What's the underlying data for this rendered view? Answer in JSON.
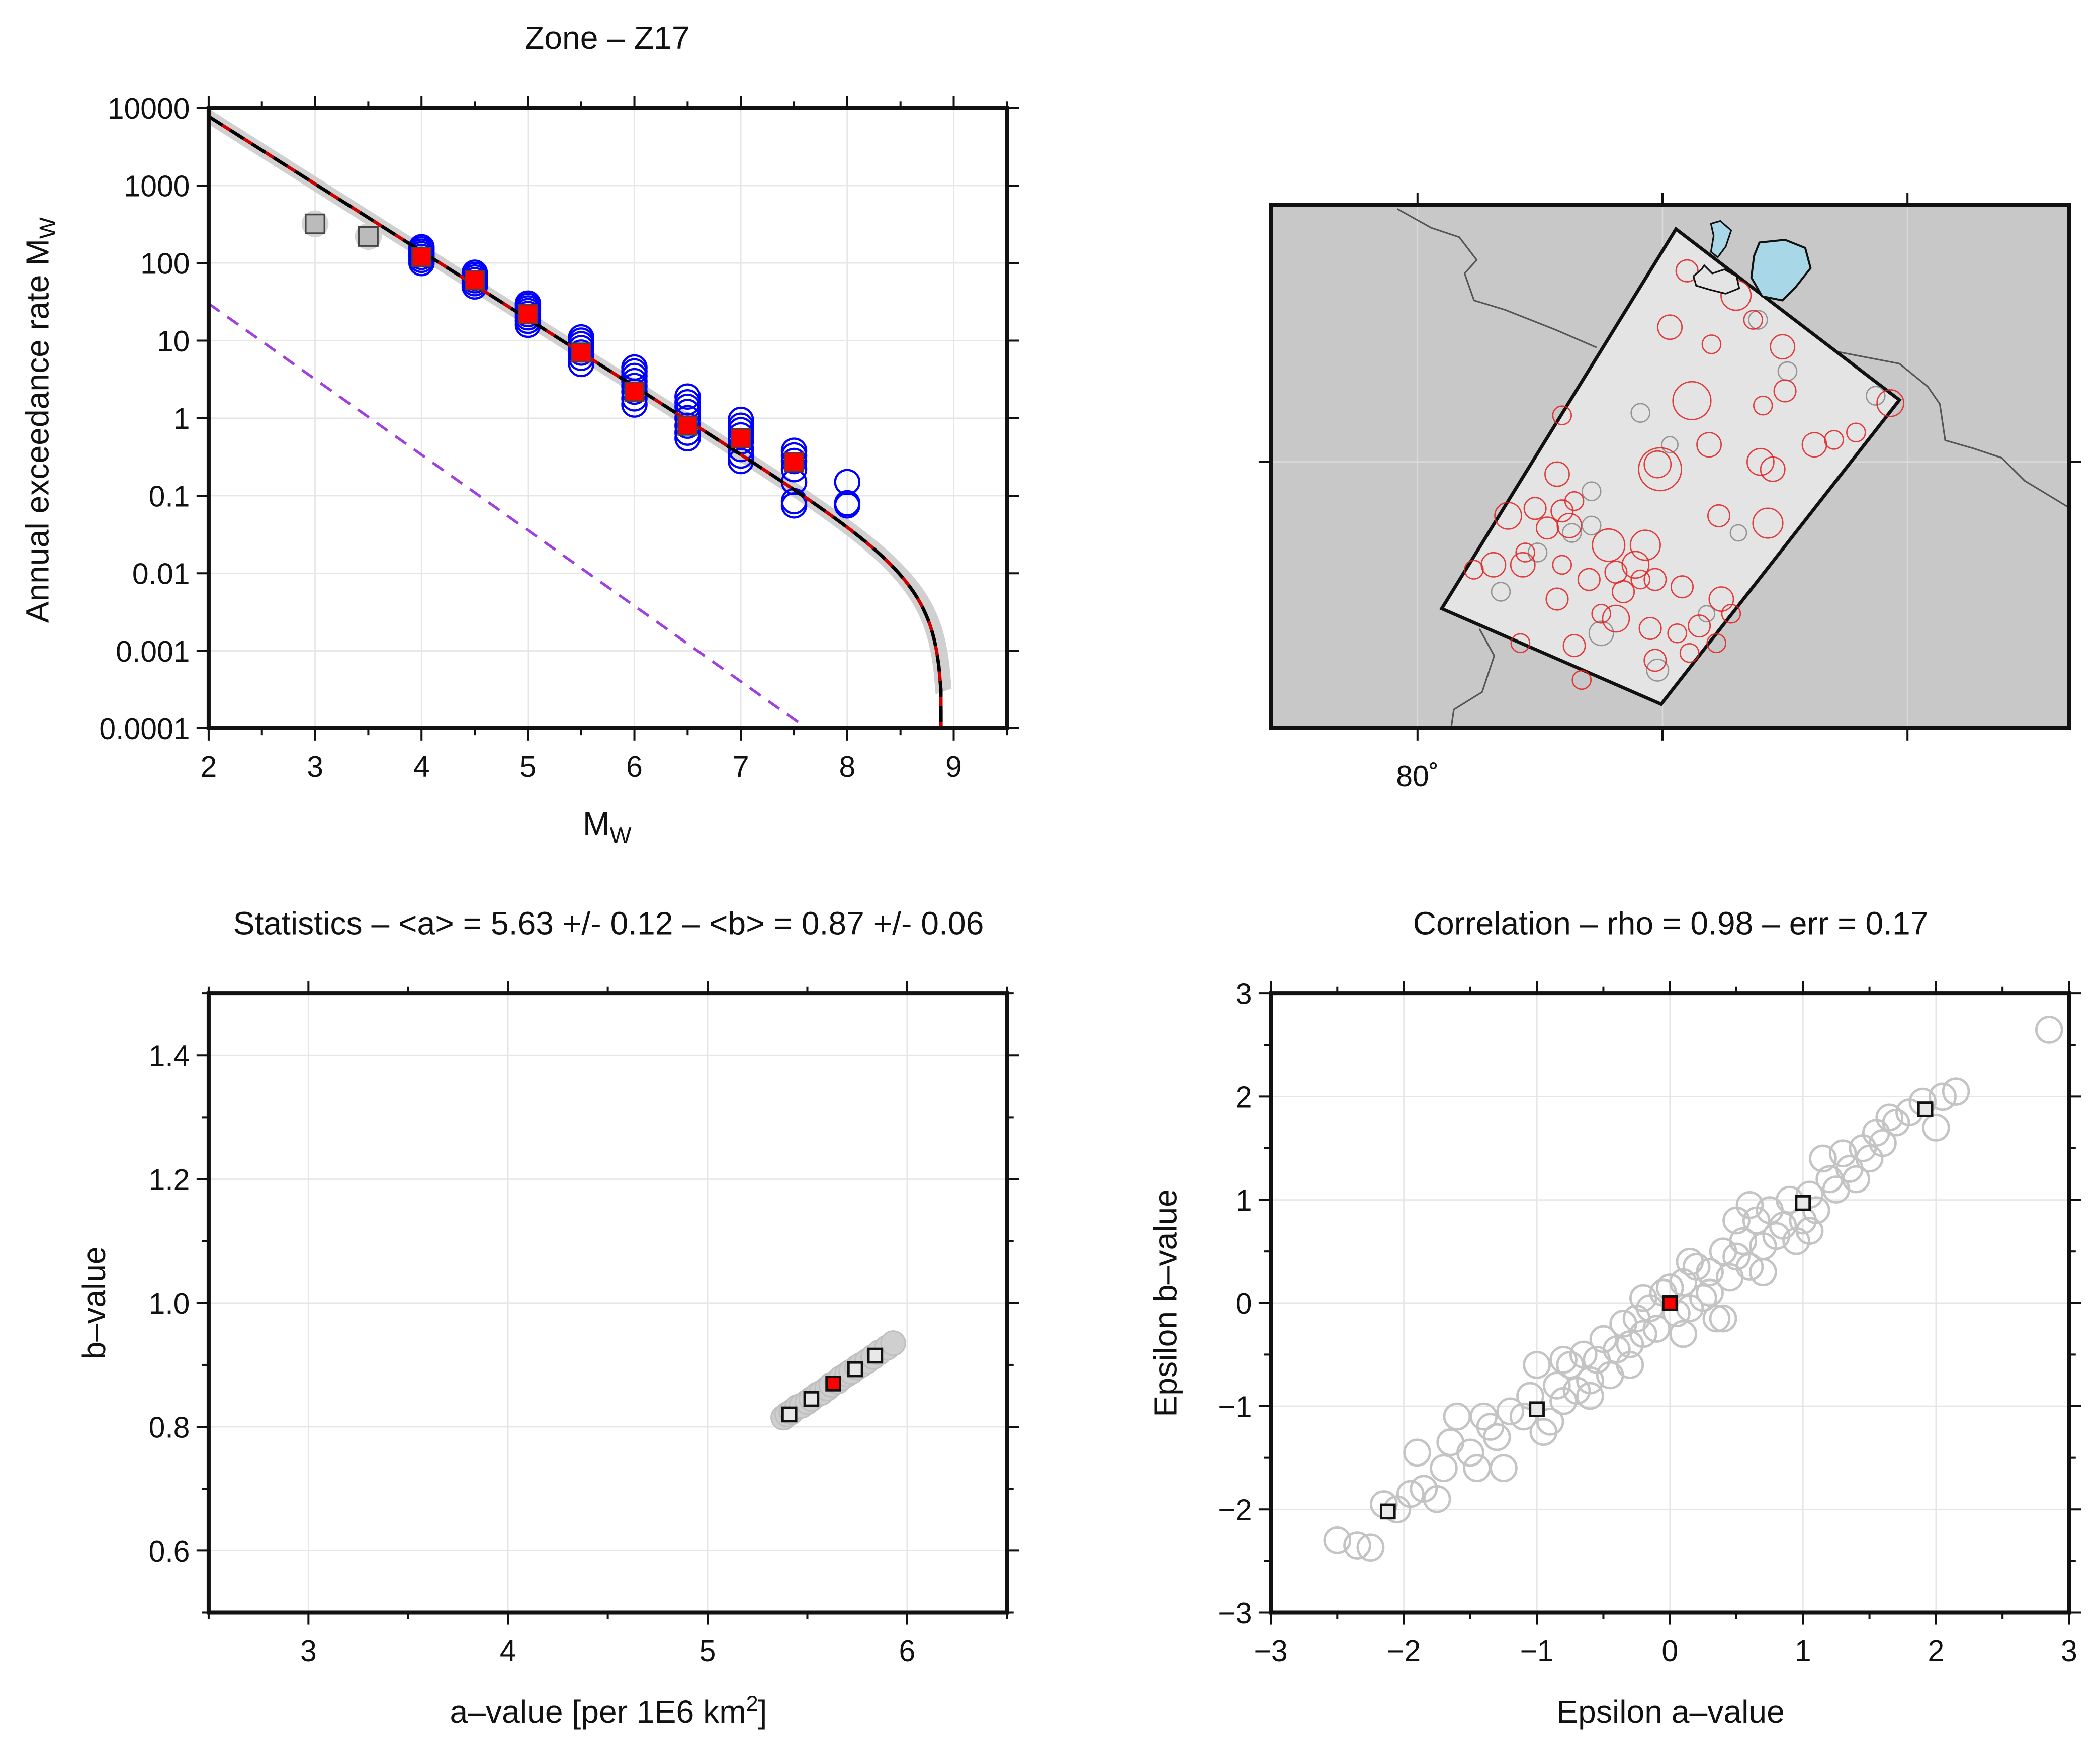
{
  "chart_data": [
    {
      "type": "scatter",
      "title": "Zone – Z17",
      "xlabel": "M",
      "xlabel_sub": "W",
      "ylabel": "Annual exceedance rate M",
      "ylabel_sub": "W",
      "xlim": [
        2,
        9.5
      ],
      "ylim": [
        0.0001,
        10000
      ],
      "yscale": "log",
      "grid": true,
      "xticks": [
        2,
        3,
        4,
        5,
        6,
        7,
        8,
        9
      ],
      "yticks": [
        10000,
        1000,
        100,
        10,
        1,
        0.1,
        0.01,
        0.001,
        0.0001
      ],
      "ytick_labels": [
        "10000",
        "1000",
        "100",
        "10",
        "1",
        "0.1",
        "0.01",
        "0.001",
        "0.0001"
      ],
      "observed_rates": {
        "color": "#ff0000",
        "x": [
          4,
          4.5,
          5,
          5.5,
          6,
          6.5,
          7,
          7.5
        ],
        "y": [
          120,
          60,
          22,
          7,
          2.2,
          0.8,
          0.55,
          0.27
        ]
      },
      "excluded_rates": {
        "color": "#bbbbbb",
        "x": [
          3,
          3.5
        ],
        "y": [
          320,
          220
        ]
      },
      "samples": {
        "color": "#0000ff",
        "groups": [
          {
            "x": 4,
            "y": [
              100,
              110,
              120,
              130,
              140,
              150,
              160
            ]
          },
          {
            "x": 4.5,
            "y": [
              50,
              55,
              60,
              65,
              70,
              75
            ]
          },
          {
            "x": 5,
            "y": [
              16,
              18,
              20,
              22,
              24,
              26,
              28,
              30
            ]
          },
          {
            "x": 5.5,
            "y": [
              5,
              6,
              7,
              8,
              9,
              10,
              11
            ]
          },
          {
            "x": 6,
            "y": [
              1.5,
              1.8,
              2.2,
              2.6,
              3,
              3.5,
              4,
              4.5
            ]
          },
          {
            "x": 6.5,
            "y": [
              0.55,
              0.65,
              0.8,
              1,
              1.2,
              1.4,
              1.6,
              1.9
            ]
          },
          {
            "x": 7,
            "y": [
              0.28,
              0.33,
              0.4,
              0.5,
              0.6,
              0.7,
              0.8,
              0.95
            ]
          },
          {
            "x": 7.5,
            "y": [
              0.075,
              0.085,
              0.15,
              0.22,
              0.28,
              0.33,
              0.38
            ]
          },
          {
            "x": 8,
            "y": [
              0.075,
              0.08,
              0.15
            ]
          }
        ]
      },
      "fit_curve": {
        "a": 5.63,
        "b": 0.87,
        "mmax": 8.9,
        "m_range": [
          2,
          8.9
        ],
        "color": "#000000",
        "style": "dashed"
      },
      "reference_line": {
        "color": "#a040e0",
        "style": "dashed",
        "x": [
          2,
          7.62
        ],
        "y": [
          30,
          0.0001
        ]
      }
    },
    {
      "type": "scatter",
      "title": "Statistics – <a> = 5.63 +/- 0.12 – <b> = 0.87 +/- 0.06",
      "xlabel": "a–value [per 1E6 km",
      "xlabel_sup": "2",
      "xlabel_end": "]",
      "ylabel": "b–value",
      "xlim": [
        2.5,
        6.5
      ],
      "ylim": [
        0.5,
        1.5
      ],
      "grid": true,
      "xticks": [
        3,
        4,
        5,
        6
      ],
      "yticks": [
        0.6,
        0.8,
        1.0,
        1.2,
        1.4
      ],
      "ytick_labels": [
        "0.6",
        "0.8",
        "1.0",
        "1.2",
        "1.4"
      ],
      "samples": [
        [
          5.38,
          0.815
        ],
        [
          5.4,
          0.82
        ],
        [
          5.42,
          0.824
        ],
        [
          5.45,
          0.832
        ],
        [
          5.47,
          0.834
        ],
        [
          5.5,
          0.84
        ],
        [
          5.52,
          0.845
        ],
        [
          5.55,
          0.852
        ],
        [
          5.57,
          0.855
        ],
        [
          5.6,
          0.862
        ],
        [
          5.62,
          0.868
        ],
        [
          5.65,
          0.873
        ],
        [
          5.67,
          0.879
        ],
        [
          5.7,
          0.885
        ],
        [
          5.72,
          0.889
        ],
        [
          5.75,
          0.896
        ],
        [
          5.77,
          0.9
        ],
        [
          5.8,
          0.906
        ],
        [
          5.83,
          0.913
        ],
        [
          5.86,
          0.92
        ],
        [
          5.9,
          0.928
        ],
        [
          5.93,
          0.935
        ]
      ],
      "percentiles": [
        [
          5.41,
          0.82
        ],
        [
          5.52,
          0.845
        ],
        [
          5.74,
          0.893
        ],
        [
          5.84,
          0.915
        ]
      ],
      "mean": [
        5.63,
        0.87
      ]
    },
    {
      "type": "scatter",
      "title": "Correlation – rho = 0.98 – err = 0.17",
      "xlabel": "Epsilon a–value",
      "ylabel": "Epsilon b–value",
      "xlim": [
        -3,
        3
      ],
      "ylim": [
        -3,
        3
      ],
      "grid": true,
      "xticks": [
        -3,
        -2,
        -1,
        0,
        1,
        2,
        3
      ],
      "yticks": [
        -3,
        -2,
        -1,
        0,
        1,
        2,
        3
      ],
      "xtick_labels": [
        "−3",
        "−2",
        "−1",
        "0",
        "1",
        "2",
        "3"
      ],
      "ytick_labels": [
        "−3",
        "−2",
        "−1",
        "0",
        "1",
        "2",
        "3"
      ],
      "samples": [
        [
          -2.5,
          -2.3
        ],
        [
          -2.35,
          -2.35
        ],
        [
          -2.25,
          -2.37
        ],
        [
          -2.15,
          -1.95
        ],
        [
          -2.05,
          -2.0
        ],
        [
          -1.95,
          -1.85
        ],
        [
          -1.9,
          -1.45
        ],
        [
          -1.85,
          -1.8
        ],
        [
          -1.75,
          -1.9
        ],
        [
          -1.65,
          -1.35
        ],
        [
          -1.7,
          -1.6
        ],
        [
          -1.5,
          -1.45
        ],
        [
          -1.45,
          -1.6
        ],
        [
          -1.4,
          -1.1
        ],
        [
          -1.3,
          -1.3
        ],
        [
          -1.25,
          -1.6
        ],
        [
          -1.2,
          -1.05
        ],
        [
          -1.1,
          -1.1
        ],
        [
          -1.05,
          -0.9
        ],
        [
          -0.95,
          -1.25
        ],
        [
          -0.9,
          -1.15
        ],
        [
          -0.85,
          -0.8
        ],
        [
          -0.8,
          -0.95
        ],
        [
          -0.75,
          -0.6
        ],
        [
          -0.7,
          -0.85
        ],
        [
          -0.65,
          -0.5
        ],
        [
          -0.6,
          -0.75
        ],
        [
          -0.55,
          -0.55
        ],
        [
          -0.5,
          -0.35
        ],
        [
          -0.45,
          -0.7
        ],
        [
          -0.4,
          -0.45
        ],
        [
          -0.35,
          -0.2
        ],
        [
          -0.3,
          -0.4
        ],
        [
          -0.25,
          -0.15
        ],
        [
          -0.2,
          -0.3
        ],
        [
          -0.15,
          -0.05
        ],
        [
          -0.1,
          -0.25
        ],
        [
          -0.05,
          0.1
        ],
        [
          0,
          0.15
        ],
        [
          0.05,
          -0.1
        ],
        [
          0.1,
          0.2
        ],
        [
          0.15,
          -0.05
        ],
        [
          0.2,
          0.35
        ],
        [
          0.25,
          0.05
        ],
        [
          0.3,
          0.3
        ],
        [
          0.35,
          -0.15
        ],
        [
          0.4,
          0.5
        ],
        [
          0.45,
          0.25
        ],
        [
          0.5,
          0.45
        ],
        [
          0.55,
          0.6
        ],
        [
          0.6,
          0.35
        ],
        [
          0.65,
          0.8
        ],
        [
          0.7,
          0.55
        ],
        [
          0.75,
          0.9
        ],
        [
          0.8,
          0.65
        ],
        [
          0.85,
          0.75
        ],
        [
          0.9,
          1.0
        ],
        [
          0.95,
          0.6
        ],
        [
          1.0,
          0.8
        ],
        [
          1.05,
          1.05
        ],
        [
          1.1,
          0.9
        ],
        [
          1.15,
          1.4
        ],
        [
          1.2,
          1.2
        ],
        [
          1.25,
          1.1
        ],
        [
          1.3,
          1.45
        ],
        [
          1.35,
          1.3
        ],
        [
          1.4,
          1.2
        ],
        [
          1.45,
          1.5
        ],
        [
          1.5,
          1.4
        ],
        [
          1.55,
          1.65
        ],
        [
          1.6,
          1.55
        ],
        [
          1.65,
          1.8
        ],
        [
          1.7,
          1.75
        ],
        [
          1.8,
          1.85
        ],
        [
          1.9,
          1.95
        ],
        [
          2.0,
          1.7
        ],
        [
          2.05,
          2.0
        ],
        [
          2.15,
          2.05
        ],
        [
          2.85,
          2.65
        ],
        [
          -1.6,
          -1.1
        ],
        [
          -1.0,
          -0.6
        ],
        [
          -0.2,
          0.05
        ],
        [
          0.3,
          0.1
        ],
        [
          0.5,
          0.8
        ],
        [
          0.7,
          0.3
        ],
        [
          -0.6,
          -0.9
        ],
        [
          -0.3,
          -0.6
        ],
        [
          0.15,
          0.4
        ],
        [
          0.1,
          -0.3
        ],
        [
          1.05,
          0.7
        ],
        [
          -1.35,
          -1.2
        ],
        [
          0.6,
          0.95
        ],
        [
          -0.8,
          -0.55
        ],
        [
          0.4,
          -0.15
        ]
      ],
      "percentiles": [
        [
          -2.12,
          -2.02
        ],
        [
          -1.0,
          -1.03
        ],
        [
          1.0,
          0.97
        ],
        [
          1.92,
          1.88
        ]
      ],
      "mean": [
        0,
        0
      ]
    }
  ],
  "map": {
    "lon_label": "80˚",
    "lon_ticks": [
      80,
      81,
      82
    ],
    "land_color": "#c8c8c8",
    "zone_color": "#e4e4e4",
    "water_color": "#a8d8e8",
    "epicenters_note_units": "lon (deg), lat offset from gridline (deg), magnitude class",
    "epicenters_in_zone": [
      [
        81.03,
        0.55,
        5.0
      ],
      [
        81.2,
        0.48,
        4.3
      ],
      [
        81.12,
        0.25,
        6.7
      ],
      [
        80.98,
        -0.01,
        5.3
      ],
      [
        81.19,
        0.07,
        5.0
      ],
      [
        80.59,
        0.19,
        4.3
      ],
      [
        81.4,
        0.0,
        5.3
      ],
      [
        81.45,
        -0.03,
        5.0
      ],
      [
        81.5,
        0.29,
        4.7
      ],
      [
        81.49,
        0.47,
        5.0
      ],
      [
        81.37,
        0.58,
        4.3
      ],
      [
        81.3,
        0.68,
        5.7
      ],
      [
        81.41,
        0.23,
        4.3
      ],
      [
        81.62,
        0.07,
        5.0
      ],
      [
        81.7,
        0.09,
        4.3
      ],
      [
        81.79,
        0.12,
        4.3
      ],
      [
        81.93,
        0.24,
        5.3
      ],
      [
        80.99,
        -0.03,
        7.3
      ],
      [
        81.23,
        -0.22,
        4.7
      ],
      [
        81.43,
        -0.25,
        5.7
      ],
      [
        80.93,
        -0.34,
        5.7
      ],
      [
        80.57,
        -0.05,
        5.0
      ],
      [
        80.37,
        -0.22,
        5.3
      ],
      [
        80.48,
        -0.19,
        4.7
      ],
      [
        80.59,
        -0.2,
        4.7
      ],
      [
        80.62,
        -0.26,
        5.0
      ],
      [
        80.53,
        -0.27,
        4.7
      ],
      [
        80.64,
        -0.16,
        4.3
      ],
      [
        80.31,
        -0.42,
        5.0
      ],
      [
        80.44,
        -0.37,
        4.3
      ],
      [
        80.59,
        -0.42,
        4.3
      ],
      [
        80.78,
        -0.34,
        6.0
      ],
      [
        80.23,
        -0.44,
        4.3
      ],
      [
        80.43,
        -0.42,
        5.0
      ],
      [
        80.7,
        -0.48,
        4.7
      ],
      [
        80.81,
        -0.45,
        4.7
      ],
      [
        80.89,
        -0.42,
        5.3
      ],
      [
        80.97,
        -0.48,
        4.7
      ],
      [
        81.08,
        -0.51,
        4.7
      ],
      [
        81.24,
        -0.56,
        5.0
      ],
      [
        80.57,
        -0.56,
        4.7
      ],
      [
        80.42,
        -0.74,
        4.3
      ],
      [
        80.64,
        -0.75,
        4.7
      ],
      [
        80.81,
        -0.64,
        5.3
      ],
      [
        80.95,
        -0.68,
        4.7
      ],
      [
        81.06,
        -0.7,
        4.3
      ],
      [
        81.15,
        -0.67,
        4.7
      ],
      [
        81.28,
        -0.62,
        4.3
      ],
      [
        80.67,
        -0.89,
        4.3
      ],
      [
        80.97,
        -0.81,
        4.7
      ],
      [
        81.11,
        -0.78,
        4.3
      ],
      [
        81.22,
        -0.74,
        4.3
      ],
      [
        80.91,
        -0.48,
        4.3
      ],
      [
        81.1,
        0.78,
        4.7
      ],
      [
        80.75,
        -0.62,
        4.3
      ],
      [
        80.84,
        -0.53,
        4.7
      ]
    ],
    "epicenters_other": [
      [
        80.91,
        0.2,
        4.3
      ],
      [
        81.03,
        0.07,
        4.0
      ],
      [
        81.51,
        0.37,
        4.3
      ],
      [
        81.87,
        0.27,
        4.3
      ],
      [
        80.71,
        -0.12,
        4.3
      ],
      [
        80.49,
        -0.37,
        4.3
      ],
      [
        80.75,
        -0.7,
        5.0
      ],
      [
        80.98,
        -0.85,
        4.7
      ],
      [
        81.31,
        -0.29,
        4.0
      ],
      [
        81.39,
        0.58,
        4.3
      ],
      [
        80.71,
        -0.26,
        4.3
      ],
      [
        80.63,
        -0.29,
        4.3
      ],
      [
        80.34,
        -0.53,
        4.3
      ],
      [
        81.18,
        -0.62,
        4.0
      ]
    ],
    "colors": {
      "in_zone": "#e02020",
      "other": "#808080"
    }
  }
}
